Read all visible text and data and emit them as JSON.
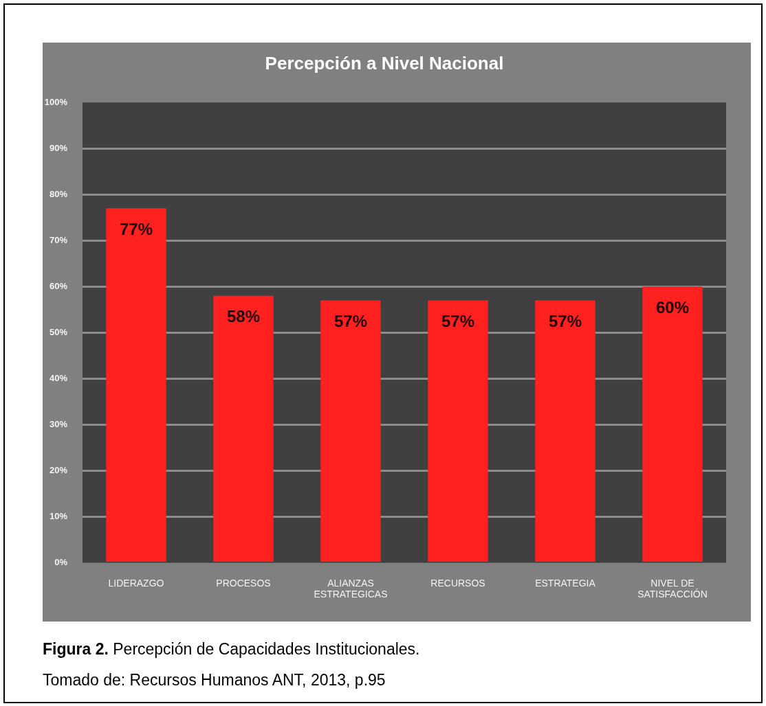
{
  "chart_data": {
    "type": "bar",
    "title": "Percepción a Nivel Nacional",
    "categories": [
      "LIDERAZGO",
      "PROCESOS",
      "ALIANZAS ESTRATEGICAS",
      "RECURSOS",
      "ESTRATEGIA",
      "NIVEL DE SATISFACCIÓN"
    ],
    "values": [
      77,
      58,
      57,
      57,
      57,
      60
    ],
    "color": "#ff2020",
    "value_labels": [
      "77%",
      "58%",
      "57%",
      "57%",
      "57%",
      "60%"
    ],
    "ylim": [
      0,
      100
    ],
    "yticks": [
      {
        "value": 0,
        "label": "0%"
      },
      {
        "value": 10,
        "label": "10%"
      },
      {
        "value": 20,
        "label": "20%"
      },
      {
        "value": 30,
        "label": "30%"
      },
      {
        "value": 40,
        "label": "40%"
      },
      {
        "value": 50,
        "label": "50%"
      },
      {
        "value": 60,
        "label": "60%"
      },
      {
        "value": 70,
        "label": "70%"
      },
      {
        "value": 80,
        "label": "80%"
      },
      {
        "value": 90,
        "label": "90%"
      },
      {
        "value": 100,
        "label": "100%"
      }
    ],
    "grid": "y",
    "legend": false,
    "annotations": [
      "Figura 2. Percepción de Capacidades Institucionales.",
      "Tomado de: Recursos Humanos ANT, 2013, p.95"
    ]
  }
}
